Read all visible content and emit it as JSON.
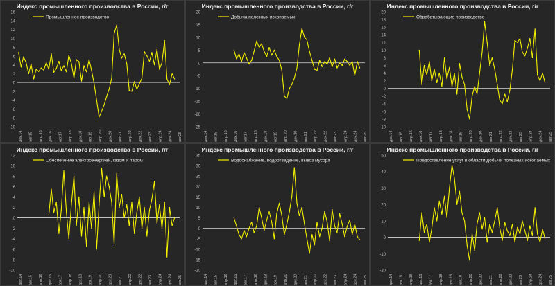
{
  "chart_data": [
    {
      "type": "line",
      "title": "Индекс промышленного производства в России, г/г",
      "legend": "Промышленное производство",
      "color": "#f4f000",
      "ylim": [
        -10,
        16
      ],
      "yticks": [
        -10,
        -8,
        -6,
        -4,
        -2,
        0,
        2,
        4,
        6,
        8,
        10,
        12,
        14,
        16
      ],
      "xticks": [
        "дек.14",
        "авг.15",
        "апр.16",
        "дек.16",
        "авг.17",
        "апр.18",
        "дек.18",
        "авг.19",
        "апр.20",
        "дек.20",
        "авг.21",
        "апр.22",
        "дек.22",
        "авг.23",
        "апр.24",
        "дек.24",
        "авг.25"
      ],
      "x": [
        2015.0,
        2015.17,
        2015.33,
        2015.5,
        2015.67,
        2015.83,
        2016.0,
        2016.17,
        2016.33,
        2016.5,
        2016.67,
        2016.83,
        2017.0,
        2017.17,
        2017.33,
        2017.5,
        2017.67,
        2017.83,
        2018.0,
        2018.17,
        2018.33,
        2018.5,
        2018.67,
        2018.83,
        2019.0,
        2019.17,
        2019.33,
        2019.5,
        2019.67,
        2019.83,
        2020.0,
        2020.17,
        2020.33,
        2020.5,
        2020.67,
        2020.83,
        2021.0,
        2021.17,
        2021.33,
        2021.5,
        2021.67,
        2021.83,
        2022.0,
        2022.17,
        2022.33,
        2022.5,
        2022.67,
        2022.83,
        2023.0,
        2023.17,
        2023.33,
        2023.5,
        2023.67,
        2023.83,
        2024.0,
        2024.17,
        2024.33,
        2024.5,
        2024.67,
        2024.83,
        2025.0,
        2025.17,
        2025.33
      ],
      "values": [
        6.8,
        3.5,
        5.8,
        4.5,
        2.0,
        4.2,
        0.8,
        3.0,
        2.5,
        3.3,
        2.8,
        4.5,
        3.0,
        6.5,
        2.3,
        3.2,
        4.8,
        2.7,
        3.8,
        2.4,
        6.2,
        4.3,
        1.0,
        5.2,
        4.7,
        0.3,
        3.8,
        2.4,
        5.2,
        2.8,
        -0.2,
        -4.0,
        -7.8,
        -6.5,
        -5.0,
        -3.2,
        -1.5,
        1.0,
        11.0,
        13.0,
        7.5,
        5.5,
        6.5,
        4.2,
        -1.8,
        -2.0,
        0.2,
        -1.5,
        -0.3,
        1.0,
        7.0,
        6.0,
        4.8,
        6.8,
        4.0,
        7.5,
        3.0,
        4.5,
        9.5,
        0.8,
        -0.5,
        2.0,
        0.8
      ]
    },
    {
      "type": "line",
      "title": "Индекс промышленного производства в России, г/г",
      "legend": "Добыча полезных ископаемых",
      "color": "#f4f000",
      "ylim": [
        -25,
        20
      ],
      "yticks": [
        -25,
        -20,
        -15,
        -10,
        -5,
        0,
        5,
        10,
        15,
        20
      ],
      "xticks": [
        "дек.14",
        "авг.15",
        "апр.16",
        "дек.16",
        "авг.17",
        "апр.18",
        "дек.18",
        "авг.19",
        "апр.20",
        "дек.20",
        "авг.21",
        "апр.22",
        "дек.22",
        "авг.23",
        "апр.24",
        "дек.24",
        "авг.25"
      ],
      "x": [
        2017.0,
        2017.17,
        2017.33,
        2017.5,
        2017.67,
        2017.83,
        2018.0,
        2018.17,
        2018.33,
        2018.5,
        2018.67,
        2018.83,
        2019.0,
        2019.17,
        2019.33,
        2019.5,
        2019.67,
        2019.83,
        2020.0,
        2020.17,
        2020.33,
        2020.5,
        2020.67,
        2020.83,
        2021.0,
        2021.17,
        2021.33,
        2021.5,
        2021.67,
        2021.83,
        2022.0,
        2022.17,
        2022.33,
        2022.5,
        2022.67,
        2022.83,
        2023.0,
        2023.17,
        2023.33,
        2023.5,
        2023.67,
        2023.83,
        2024.0,
        2024.17,
        2024.33,
        2024.5,
        2024.67,
        2024.83,
        2025.0,
        2025.17,
        2025.33
      ],
      "values": [
        5.0,
        1.5,
        3.5,
        0.5,
        4.0,
        2.0,
        -0.5,
        1.0,
        4.5,
        8.5,
        6.0,
        7.5,
        4.5,
        2.5,
        6.0,
        3.0,
        5.0,
        2.5,
        1.0,
        -3.0,
        -13.0,
        -14.0,
        -10.0,
        -8.5,
        -6.0,
        -2.0,
        7.0,
        13.5,
        10.0,
        9.0,
        4.5,
        1.0,
        -2.5,
        -3.0,
        1.0,
        -1.5,
        0.5,
        -0.5,
        2.0,
        -1.5,
        1.5,
        -2.0,
        0.0,
        -1.0,
        1.5,
        0.5,
        -1.0,
        0.5,
        -5.0,
        0.5,
        -2.0
      ]
    },
    {
      "type": "line",
      "title": "Индекс промышленного производства в России, г/г",
      "legend": "Обрабатывающие производство",
      "color": "#f4f000",
      "ylim": [
        -10,
        20
      ],
      "yticks": [
        -10,
        -8,
        -6,
        -4,
        -2,
        0,
        2,
        4,
        6,
        8,
        10,
        12,
        14,
        16,
        18,
        20
      ],
      "xticks": [
        "дек.14",
        "авг.15",
        "апр.16",
        "дек.16",
        "авг.17",
        "апр.18",
        "дек.18",
        "авг.19",
        "апр.20",
        "дек.20",
        "авг.21",
        "апр.22",
        "дек.22",
        "авг.23",
        "апр.24",
        "дек.24",
        "авг.25"
      ],
      "x": [
        2017.0,
        2017.17,
        2017.33,
        2017.5,
        2017.67,
        2017.83,
        2018.0,
        2018.17,
        2018.33,
        2018.5,
        2018.67,
        2018.83,
        2019.0,
        2019.17,
        2019.33,
        2019.5,
        2019.67,
        2019.83,
        2020.0,
        2020.17,
        2020.33,
        2020.5,
        2020.67,
        2020.83,
        2021.0,
        2021.17,
        2021.33,
        2021.5,
        2021.67,
        2021.83,
        2022.0,
        2022.17,
        2022.33,
        2022.5,
        2022.67,
        2022.83,
        2023.0,
        2023.17,
        2023.33,
        2023.5,
        2023.67,
        2023.83,
        2024.0,
        2024.17,
        2024.33,
        2024.5,
        2024.67,
        2024.83,
        2025.0,
        2025.17,
        2025.33
      ],
      "values": [
        10.0,
        1.0,
        6.0,
        3.5,
        7.0,
        2.0,
        5.0,
        1.5,
        4.0,
        0.5,
        8.0,
        2.5,
        5.5,
        0.5,
        4.0,
        -1.5,
        6.5,
        3.0,
        1.0,
        -5.5,
        -8.0,
        -2.0,
        0.5,
        -1.5,
        4.0,
        9.5,
        17.5,
        12.0,
        6.0,
        8.0,
        5.0,
        1.0,
        -3.0,
        -4.0,
        -1.5,
        -3.5,
        -0.5,
        5.0,
        12.5,
        12.0,
        13.0,
        9.5,
        8.5,
        10.5,
        13.0,
        8.0,
        15.5,
        3.5,
        2.0,
        4.0,
        1.5
      ]
    },
    {
      "type": "line",
      "title": "Индекс промышленного производства в России, г/г",
      "legend": "Обеспечение электроэнергией, газом и паром",
      "color": "#f4f000",
      "ylim": [
        -10,
        12
      ],
      "yticks": [
        -10,
        -8,
        -6,
        -4,
        -2,
        0,
        2,
        4,
        6,
        8,
        10,
        12
      ],
      "xticks": [
        "дек.14",
        "авг.15",
        "апр.16",
        "дек.16",
        "авг.17",
        "апр.18",
        "дек.18",
        "авг.19",
        "апр.20",
        "дек.20",
        "авг.21",
        "апр.22",
        "дек.22",
        "авг.23",
        "апр.24",
        "дек.24",
        "авг.25"
      ],
      "x": [
        2017.0,
        2017.17,
        2017.33,
        2017.5,
        2017.67,
        2017.83,
        2018.0,
        2018.17,
        2018.33,
        2018.5,
        2018.67,
        2018.83,
        2019.0,
        2019.17,
        2019.33,
        2019.5,
        2019.67,
        2019.83,
        2020.0,
        2020.17,
        2020.33,
        2020.5,
        2020.67,
        2020.83,
        2021.0,
        2021.17,
        2021.33,
        2021.5,
        2021.67,
        2021.83,
        2022.0,
        2022.17,
        2022.33,
        2022.5,
        2022.67,
        2022.83,
        2023.0,
        2023.17,
        2023.33,
        2023.5,
        2023.67,
        2023.83,
        2024.0,
        2024.17,
        2024.33,
        2024.5,
        2024.67,
        2024.83,
        2025.0,
        2025.17,
        2025.33
      ],
      "values": [
        0.5,
        5.5,
        1.0,
        3.0,
        -3.0,
        1.5,
        9.0,
        1.0,
        -4.0,
        2.5,
        8.0,
        -1.5,
        4.0,
        -3.5,
        2.0,
        -5.5,
        3.0,
        -2.0,
        5.0,
        -6.0,
        2.5,
        9.5,
        4.0,
        8.0,
        6.0,
        3.0,
        -5.0,
        8.5,
        2.0,
        4.5,
        0.0,
        2.5,
        -1.5,
        3.0,
        -3.0,
        1.0,
        4.0,
        -2.0,
        2.0,
        -3.5,
        1.5,
        3.5,
        7.0,
        -1.0,
        2.5,
        -2.0,
        3.0,
        -7.5,
        2.0,
        -1.5,
        0.0
      ]
    },
    {
      "type": "line",
      "title": "Индекс промышленного производства в России, г/г",
      "legend": "Водоснабжение, водоотведение, вывоз мусора",
      "color": "#f4f000",
      "ylim": [
        -20,
        35
      ],
      "yticks": [
        -20,
        -15,
        -10,
        -5,
        0,
        5,
        10,
        15,
        20,
        25,
        30,
        35
      ],
      "xticks": [
        "дек.14",
        "авг.15",
        "апр.16",
        "дек.16",
        "авг.17",
        "апр.18",
        "дек.18",
        "авг.19",
        "апр.20",
        "дек.20",
        "авг.21",
        "апр.22",
        "дек.22",
        "авг.23",
        "апр.24",
        "дек.24",
        "авг.25"
      ],
      "x": [
        2017.0,
        2017.17,
        2017.33,
        2017.5,
        2017.67,
        2017.83,
        2018.0,
        2018.17,
        2018.33,
        2018.5,
        2018.67,
        2018.83,
        2019.0,
        2019.17,
        2019.33,
        2019.5,
        2019.67,
        2019.83,
        2020.0,
        2020.17,
        2020.33,
        2020.5,
        2020.67,
        2020.83,
        2021.0,
        2021.17,
        2021.33,
        2021.5,
        2021.67,
        2021.83,
        2022.0,
        2022.17,
        2022.33,
        2022.5,
        2022.67,
        2022.83,
        2023.0,
        2023.17,
        2023.33,
        2023.5,
        2023.67,
        2023.83,
        2024.0,
        2024.17,
        2024.33,
        2024.5,
        2024.67,
        2024.83,
        2025.0,
        2025.17,
        2025.33
      ],
      "values": [
        5.0,
        1.0,
        -3.0,
        -5.0,
        -1.0,
        -4.0,
        0.0,
        3.0,
        -2.0,
        1.0,
        10.0,
        5.0,
        -1.0,
        4.0,
        8.0,
        3.0,
        -5.0,
        7.0,
        12.0,
        6.0,
        -3.0,
        2.0,
        8.0,
        15.0,
        29.0,
        12.0,
        6.0,
        10.0,
        2.0,
        -5.0,
        -12.0,
        -3.0,
        -8.0,
        3.0,
        -4.0,
        0.0,
        8.0,
        3.0,
        -6.0,
        9.0,
        1.0,
        -2.0,
        7.0,
        2.0,
        -4.0,
        1.0,
        4.0,
        -3.0,
        2.0,
        -4.0,
        -5.5
      ]
    },
    {
      "type": "line",
      "title": "Индекс промышленного производства в России, г/г",
      "legend": "Предоставление услуг в области добычи полезных ископаемых",
      "color": "#f4f000",
      "ylim": [
        -20,
        50
      ],
      "yticks": [
        -20,
        -10,
        0,
        10,
        20,
        30,
        40,
        50
      ],
      "xticks": [
        "дек.14",
        "авг.15",
        "апр.16",
        "дек.16",
        "авг.17",
        "апр.18",
        "дек.18",
        "авг.19",
        "апр.20",
        "дек.20",
        "авг.21",
        "апр.22",
        "дек.22",
        "авг.23",
        "апр.24",
        "дек.24",
        "авг.25"
      ],
      "x": [
        2017.0,
        2017.17,
        2017.33,
        2017.5,
        2017.67,
        2017.83,
        2018.0,
        2018.17,
        2018.33,
        2018.5,
        2018.67,
        2018.83,
        2019.0,
        2019.17,
        2019.33,
        2019.5,
        2019.67,
        2019.83,
        2020.0,
        2020.17,
        2020.33,
        2020.5,
        2020.67,
        2020.83,
        2021.0,
        2021.17,
        2021.33,
        2021.5,
        2021.67,
        2021.83,
        2022.0,
        2022.17,
        2022.33,
        2022.5,
        2022.67,
        2022.83,
        2023.0,
        2023.17,
        2023.33,
        2023.5,
        2023.67,
        2023.83,
        2024.0,
        2024.17,
        2024.33,
        2024.5,
        2024.67,
        2024.83,
        2025.0,
        2025.17,
        2025.33
      ],
      "values": [
        -2.0,
        15.0,
        3.0,
        8.0,
        -3.0,
        5.0,
        18.0,
        10.0,
        22.0,
        14.0,
        25.0,
        12.0,
        30.0,
        44.0,
        36.0,
        20.0,
        28.0,
        15.0,
        10.0,
        -5.0,
        -14.0,
        2.0,
        -8.0,
        8.0,
        15.0,
        5.0,
        12.0,
        -3.0,
        8.0,
        3.0,
        10.0,
        18.0,
        6.0,
        -2.0,
        9.0,
        4.0,
        1.0,
        8.0,
        -3.0,
        6.0,
        2.0,
        10.0,
        4.0,
        -2.0,
        7.0,
        1.0,
        18.0,
        2.0,
        -3.0,
        5.0,
        -1.0
      ]
    }
  ]
}
